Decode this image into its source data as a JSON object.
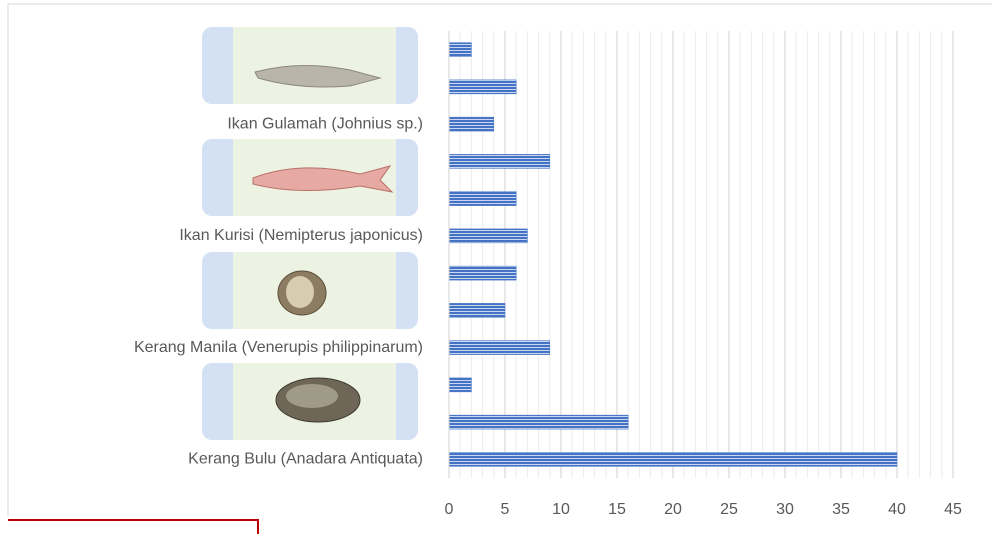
{
  "chart_data": {
    "type": "bar",
    "orientation": "horizontal",
    "categories": [
      null,
      null,
      "Ikan Gulamah  (Johnius sp.)",
      null,
      null,
      "Ikan Kurisi  (Nemipterus japonicus)",
      null,
      null,
      "Kerang Manila (Venerupis philippinarum)",
      null,
      null,
      "Kerang Bulu (Anadara Antiquata)"
    ],
    "values": [
      2,
      6,
      4,
      9,
      6,
      7,
      6,
      5,
      9,
      2,
      16,
      40
    ],
    "color": "#4472c4",
    "xlim": [
      0,
      45
    ],
    "xticks": [
      0,
      5,
      10,
      15,
      20,
      25,
      30,
      35,
      40,
      45
    ],
    "grid": true
  }
}
